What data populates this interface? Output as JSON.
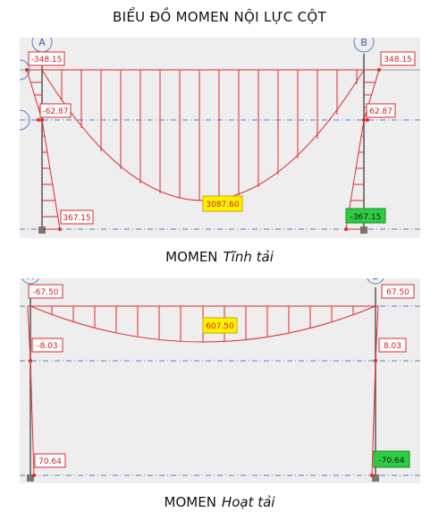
{
  "title": "BIỂU ĐỒ MOMEN NỘI LỰC CỘT",
  "colors": {
    "diagram": "#e02a2a",
    "axis": "#5a7fc9",
    "label_yellow": "#fff200",
    "label_green": "#2ecc40",
    "panel_bg": "#eeeeee"
  },
  "diagrams": [
    {
      "caption_prefix": "MOMEN",
      "caption_case": "Tĩnh tải",
      "grid_left": "A",
      "grid_right": "B",
      "labels": {
        "top_left": "-348.15",
        "top_right": "348.15",
        "mid_left": "-62.87",
        "mid_right": "62.87",
        "bottom_left": "367.15",
        "bottom_right": "-367.15",
        "span_max": "3087.60"
      }
    },
    {
      "caption_prefix": "MOMEN",
      "caption_case": "Hoạt tải",
      "grid_left": "A",
      "grid_right": "B",
      "labels": {
        "top_left": "-67.50",
        "top_right": "67.50",
        "mid_left": "-8.03",
        "mid_right": "8.03",
        "bottom_left": "70.64",
        "bottom_right": "-70.64",
        "span_max": "607.50"
      }
    }
  ]
}
